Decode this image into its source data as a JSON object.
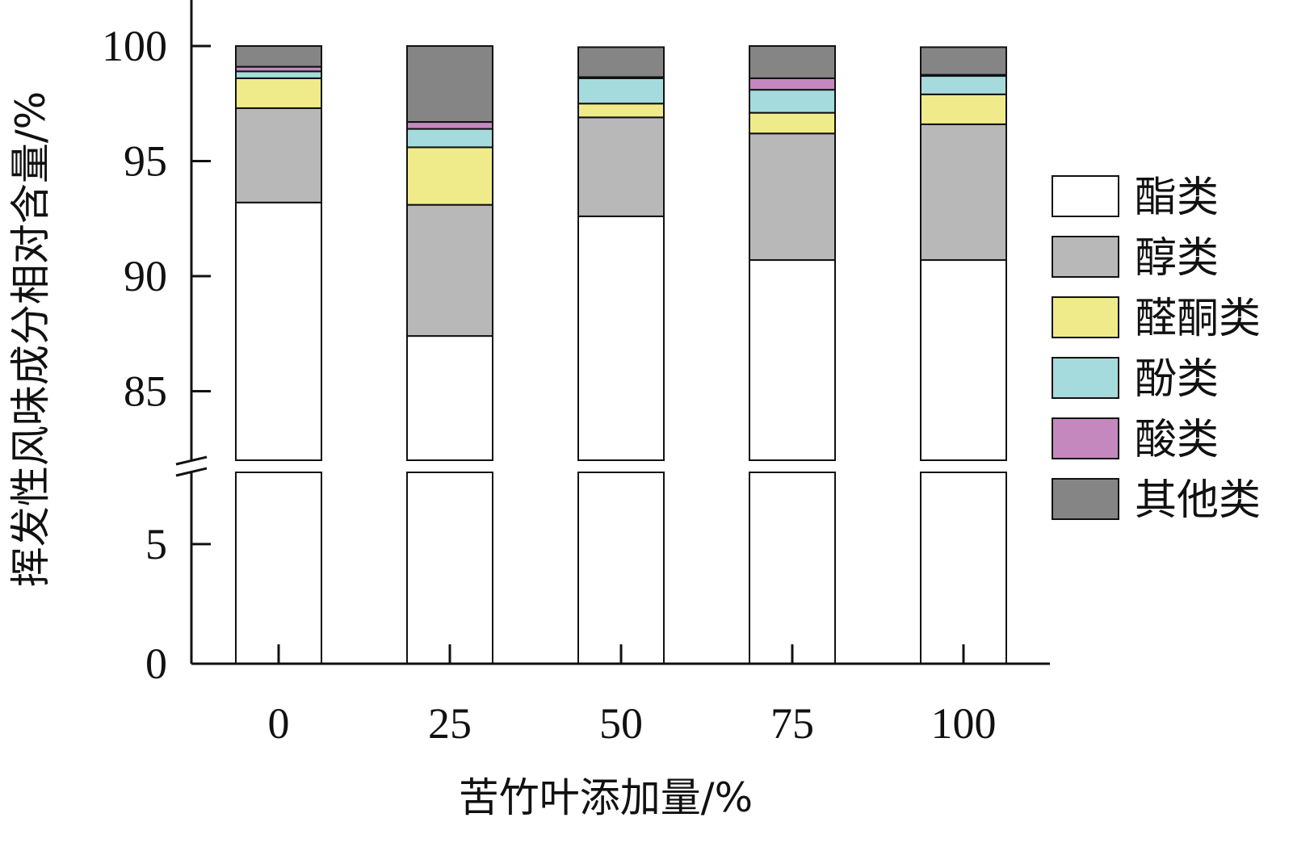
{
  "chart_data": {
    "type": "bar",
    "stacked": true,
    "xlabel": "苦竹叶添加量/%",
    "ylabel": "挥发性风味成分相对含量/%",
    "categories": [
      "0",
      "25",
      "50",
      "75",
      "100"
    ],
    "y_axis_break": [
      8,
      82
    ],
    "ylim_lower": [
      0,
      8
    ],
    "ylim_upper": [
      82,
      102
    ],
    "yticks_lower": [
      "0",
      "5"
    ],
    "yticks_upper": [
      "85",
      "90",
      "95",
      "100"
    ],
    "legend_position": "right",
    "series": [
      {
        "name": "酯类",
        "color": "#ffffff",
        "values": [
          93.2,
          87.4,
          92.6,
          90.7,
          90.7
        ]
      },
      {
        "name": "醇类",
        "color": "#b8b8b8",
        "values": [
          4.1,
          5.7,
          4.3,
          5.5,
          5.9
        ]
      },
      {
        "name": "醛酮类",
        "color": "#efeb8a",
        "values": [
          1.3,
          2.5,
          0.6,
          0.9,
          1.3
        ]
      },
      {
        "name": "酚类",
        "color": "#a6dbdd",
        "values": [
          0.3,
          0.8,
          1.1,
          1.0,
          0.8
        ]
      },
      {
        "name": "酸类",
        "color": "#c488be",
        "values": [
          0.2,
          0.3,
          0.05,
          0.5,
          0.05
        ]
      },
      {
        "name": "其他类",
        "color": "#858585",
        "values": [
          0.9,
          3.3,
          1.3,
          1.4,
          1.2
        ]
      }
    ]
  }
}
